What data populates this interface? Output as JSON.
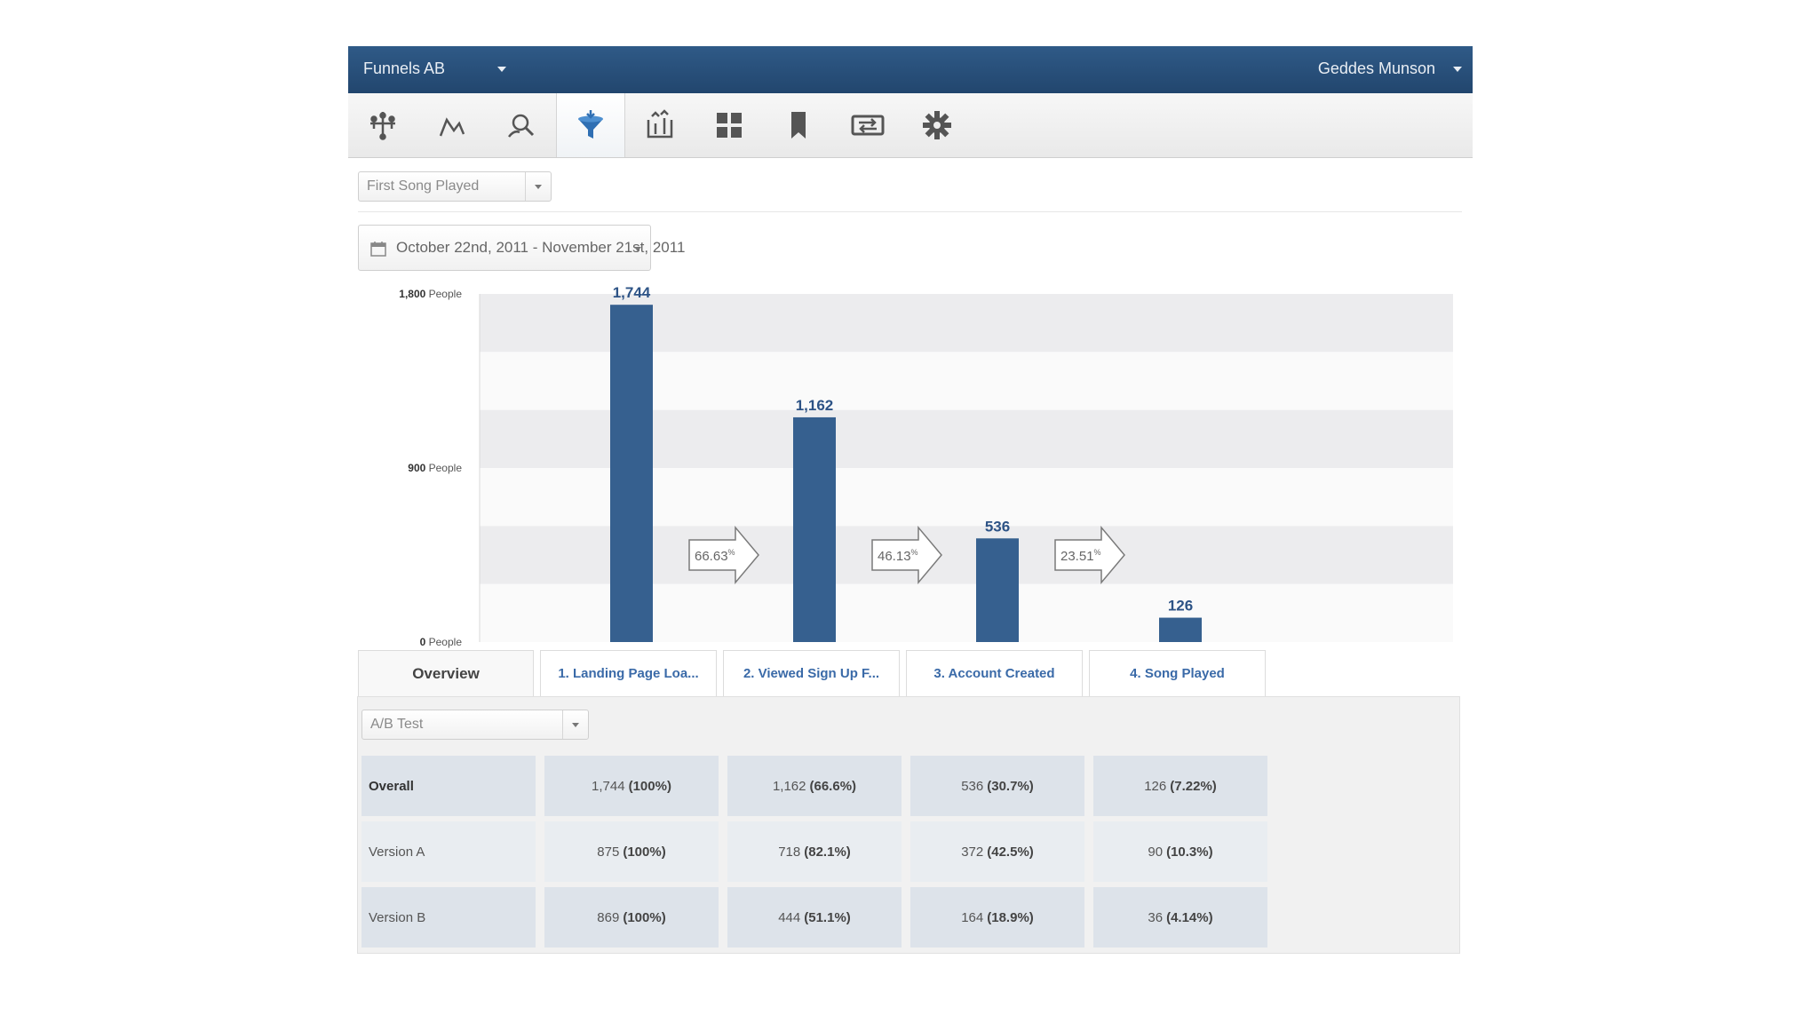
{
  "header": {
    "app_title": "Funnels AB",
    "user_name": "Geddes Munson",
    "accent_color": "#2c5282"
  },
  "toolbar": {
    "tools": [
      {
        "icon": "segmentation-icon",
        "active": false
      },
      {
        "icon": "trends-icon",
        "active": false
      },
      {
        "icon": "people-search-icon",
        "active": false
      },
      {
        "icon": "funnel-icon",
        "active": true
      },
      {
        "icon": "retention-icon",
        "active": false
      },
      {
        "icon": "dashboard-grid-icon",
        "active": false
      },
      {
        "icon": "bookmark-icon",
        "active": false
      },
      {
        "icon": "export-icon",
        "active": false
      },
      {
        "icon": "settings-gear-icon",
        "active": false
      }
    ]
  },
  "funnel_select": {
    "value": "First Song Played"
  },
  "date_range": {
    "value": "October 22nd, 2011 - November 21st, 2011"
  },
  "chart_data": {
    "type": "bar",
    "categories": [
      "1. Landing Page Loa...",
      "2. Viewed Sign Up F...",
      "3. Account Created",
      "4. Song Played"
    ],
    "values": [
      1744,
      1162,
      536,
      126
    ],
    "value_labels": [
      "1,744",
      "1,162",
      "536",
      "126"
    ],
    "ylim": [
      0,
      1800
    ],
    "yticks": [
      {
        "value": 1800,
        "num": "1,800",
        "unit": "People"
      },
      {
        "value": 900,
        "num": "900",
        "unit": "People"
      },
      {
        "value": 0,
        "num": "0",
        "unit": "People"
      }
    ],
    "conversion_arrows": [
      {
        "value": "66.63",
        "unit": "%"
      },
      {
        "value": "46.13",
        "unit": "%"
      },
      {
        "value": "23.51",
        "unit": "%"
      }
    ],
    "bar_color": "#36608f"
  },
  "tabs": {
    "overview": "Overview",
    "steps": [
      "1. Landing Page Loa...",
      "2. Viewed Sign Up F...",
      "3. Account Created",
      "4. Song Played"
    ]
  },
  "segment_select": {
    "value": "A/B Test"
  },
  "table": {
    "rows": [
      {
        "label": "Overall",
        "cells": [
          [
            "1,744",
            "(100%)"
          ],
          [
            "1,162",
            "(66.6%)"
          ],
          [
            "536",
            "(30.7%)"
          ],
          [
            "126",
            "(7.22%)"
          ]
        ]
      },
      {
        "label": "Version A",
        "cells": [
          [
            "875",
            "(100%)"
          ],
          [
            "718",
            "(82.1%)"
          ],
          [
            "372",
            "(42.5%)"
          ],
          [
            "90",
            "(10.3%)"
          ]
        ]
      },
      {
        "label": "Version B",
        "cells": [
          [
            "869",
            "(100%)"
          ],
          [
            "444",
            "(51.1%)"
          ],
          [
            "164",
            "(18.9%)"
          ],
          [
            "36",
            "(4.14%)"
          ]
        ]
      }
    ]
  }
}
